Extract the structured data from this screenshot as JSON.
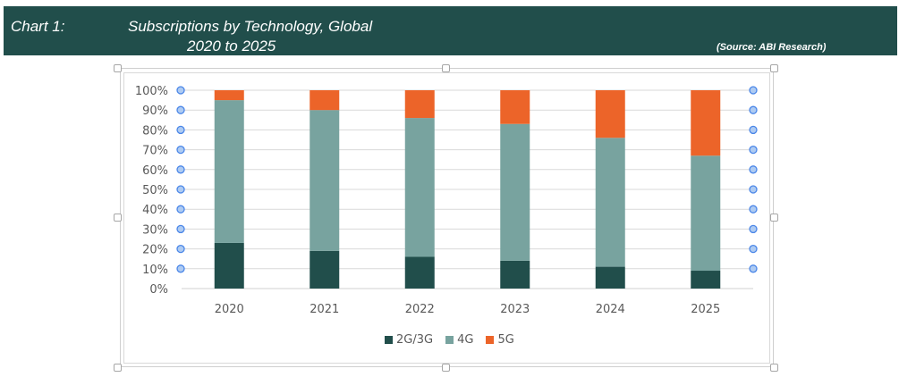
{
  "header": {
    "label": "Chart 1:",
    "title_line1": "Subscriptions by Technology, Global",
    "title_line2": "2020 to 2025",
    "source": "(Source: ABI Research)"
  },
  "colors": {
    "header_bg": "#214e4b",
    "series_2g3g": "#214e4b",
    "series_4g": "#78a39f",
    "series_5g": "#ec6429",
    "handle_dot": "#4a86e8"
  },
  "chart_data": {
    "type": "bar",
    "stacked": "percent",
    "title": "Subscriptions by Technology, Global 2020 to 2025",
    "xlabel": "",
    "ylabel": "",
    "categories": [
      "2020",
      "2021",
      "2022",
      "2023",
      "2024",
      "2025"
    ],
    "series": [
      {
        "name": "2G/3G",
        "values": [
          23,
          19,
          16,
          14,
          11,
          9
        ]
      },
      {
        "name": "4G",
        "values": [
          72,
          71,
          70,
          69,
          65,
          58
        ]
      },
      {
        "name": "5G",
        "values": [
          5,
          10,
          14,
          17,
          24,
          33
        ]
      }
    ],
    "ylim": [
      0,
      100
    ],
    "yticks": [
      "0%",
      "10%",
      "20%",
      "30%",
      "40%",
      "50%",
      "60%",
      "70%",
      "80%",
      "90%",
      "100%"
    ],
    "grid": true,
    "legend_position": "bottom"
  }
}
